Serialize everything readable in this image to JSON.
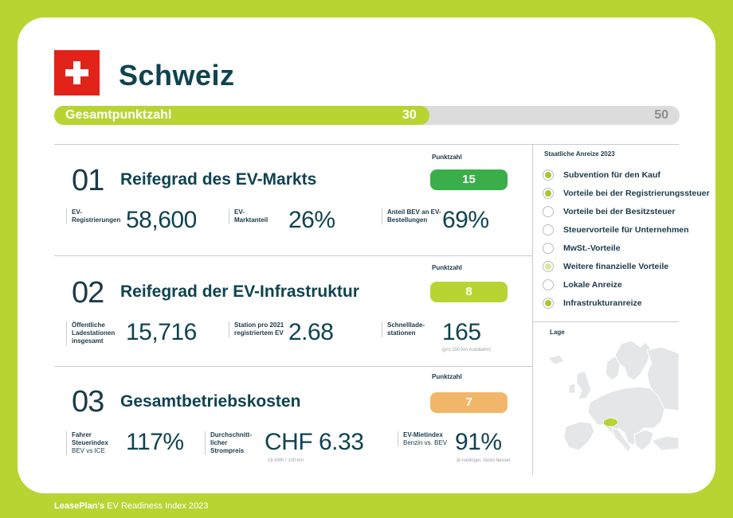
{
  "header": {
    "country": "Schweiz",
    "flag_icon": "swiss-flag-icon"
  },
  "total": {
    "label": "Gesamtpunktzahl",
    "score": "30",
    "max": "50",
    "fill_fraction": 0.6
  },
  "score_header": "Punktzahl",
  "sections": [
    {
      "num": "01",
      "title": "Reifegrad des EV-Markts",
      "score": "15",
      "score_color": "#3aae49",
      "metrics": [
        {
          "label": "EV-Registrierungen",
          "sub": "",
          "value": "58,600",
          "note": ""
        },
        {
          "label": "EV-Marktanteil",
          "sub": "",
          "value": "26%",
          "note": ""
        },
        {
          "label": "Anteil BEV an EV-Bestellungen",
          "sub": "",
          "value": "69%",
          "note": ""
        }
      ]
    },
    {
      "num": "02",
      "title": "Reifegrad der EV-Infrastruktur",
      "score": "8",
      "score_color": "#b8d433",
      "metrics": [
        {
          "label": "Öffentliche Ladestationen insgesamt",
          "sub": "",
          "value": "15,716",
          "note": ""
        },
        {
          "label": "Station pro 2021 registriertem EV",
          "sub": "",
          "value": "2.68",
          "note": ""
        },
        {
          "label": "Schnelllade-stationen",
          "sub": "",
          "value": "165",
          "note": "(pro 100 km Autobahn)"
        }
      ]
    },
    {
      "num": "03",
      "title": "Gesamtbetriebskosten",
      "score": "7",
      "score_color": "#f2b66b",
      "metrics": [
        {
          "label": "Fahrer Steuerindex",
          "sub": "BEV vs ICE",
          "value": "117%",
          "note": ""
        },
        {
          "label": "Durchschnitt-licher Strompreis",
          "sub": "",
          "value": "CHF 6.33",
          "note": "18 kWh / 100 km"
        },
        {
          "label": "EV-Mietindex",
          "sub": "Benzin vs. BEV",
          "value": "91%",
          "note": "Je niedriger, desto besser"
        }
      ]
    }
  ],
  "incentives": {
    "title": "Staatliche Anreize 2023",
    "items": [
      {
        "label": "Subvention für den Kauf",
        "status": "full"
      },
      {
        "label": "Vorteile bei der Registrierungssteuer",
        "status": "full"
      },
      {
        "label": "Vorteile bei der Besitzsteuer",
        "status": "none"
      },
      {
        "label": "Steuervorteile für Unternehmen",
        "status": "none"
      },
      {
        "label": "MwSt.-Vorteile",
        "status": "none"
      },
      {
        "label": "Weitere finanzielle Vorteile",
        "status": "partial"
      },
      {
        "label": "Lokale Anreize",
        "status": "none"
      },
      {
        "label": "Infrastrukturanreize",
        "status": "full"
      }
    ],
    "colors": {
      "full": "#a6c82e",
      "partial": "#d9e89a",
      "none": "#ffffff"
    }
  },
  "location": {
    "label": "Lage",
    "map_icon": "europe-map-icon",
    "highlight_color": "#b8d433"
  },
  "footer": {
    "brand": "LeasePlan's",
    "text": "EV Readiness Index 2023"
  }
}
